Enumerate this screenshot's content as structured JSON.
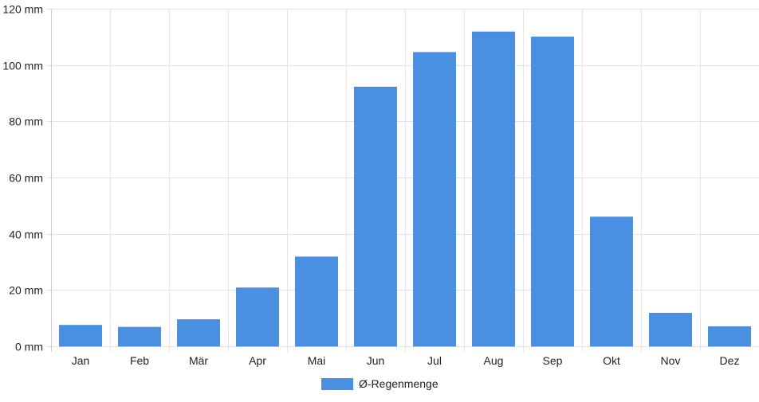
{
  "chart_data": {
    "type": "bar",
    "categories": [
      "Jan",
      "Feb",
      "Mär",
      "Apr",
      "Mai",
      "Jun",
      "Jul",
      "Aug",
      "Sep",
      "Okt",
      "Nov",
      "Dez"
    ],
    "series": [
      {
        "name": "Ø-Regenmenge",
        "values": [
          7.5,
          6.8,
          9.5,
          20.8,
          31.8,
          92.2,
          104.5,
          111.8,
          110.0,
          46.0,
          11.8,
          7.0
        ],
        "color": "#4a90e2"
      }
    ],
    "ylim": [
      0,
      120
    ],
    "y_ticks": [
      0,
      20,
      40,
      60,
      80,
      100,
      120
    ],
    "y_unit": "mm",
    "grid": true,
    "legend_position": "bottom-center"
  }
}
